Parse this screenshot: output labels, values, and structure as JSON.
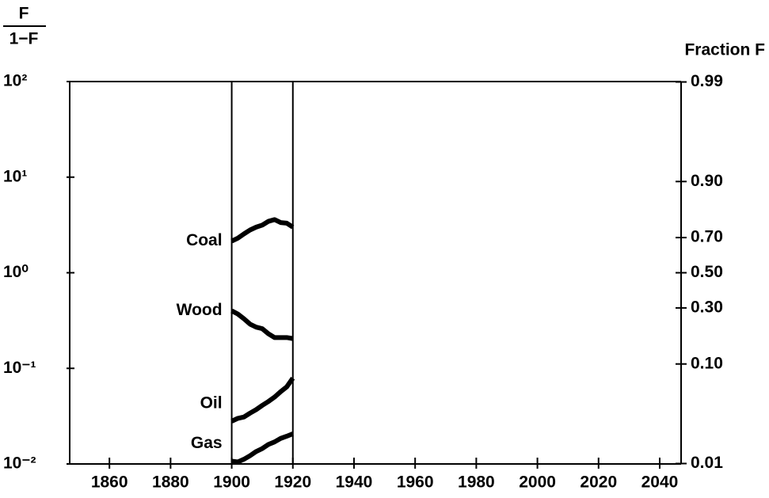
{
  "chart_data": {
    "type": "line",
    "log_y": true,
    "y_label": {
      "numerator": "F",
      "denominator": "1−F"
    },
    "y2_label": "Fraction F",
    "x": [
      1900,
      1902,
      1904,
      1906,
      1908,
      1910,
      1912,
      1914,
      1916,
      1918,
      1920
    ],
    "series": [
      {
        "name": "Coal",
        "color": "#000000",
        "values": [
          2.14,
          2.3,
          2.55,
          2.8,
          3.0,
          3.15,
          3.45,
          3.6,
          3.35,
          3.3,
          3.0
        ]
      },
      {
        "name": "Wood",
        "color": "#000000",
        "values": [
          0.4,
          0.37,
          0.33,
          0.29,
          0.27,
          0.26,
          0.23,
          0.21,
          0.21,
          0.21,
          0.205
        ]
      },
      {
        "name": "Oil",
        "color": "#000000",
        "values": [
          0.028,
          0.03,
          0.031,
          0.034,
          0.037,
          0.041,
          0.045,
          0.05,
          0.057,
          0.064,
          0.079
        ]
      },
      {
        "name": "Gas",
        "color": "#000000",
        "values": [
          0.0107,
          0.0105,
          0.0112,
          0.0122,
          0.0135,
          0.0145,
          0.016,
          0.017,
          0.0185,
          0.0195,
          0.0207
        ]
      }
    ],
    "xlim": [
      1847,
      2047
    ],
    "xticks": [
      1860,
      1880,
      1900,
      1920,
      1940,
      1960,
      1980,
      2000,
      2020,
      2040
    ],
    "ylim": [
      0.01,
      100
    ],
    "yticks": [
      {
        "value": 0.01,
        "label": "10⁻²"
      },
      {
        "value": 0.1,
        "label": "10⁻¹"
      },
      {
        "value": 1,
        "label": "10⁰"
      },
      {
        "value": 10,
        "label": "10¹"
      },
      {
        "value": 100,
        "label": "10²"
      }
    ],
    "y2_scale": "logit",
    "y2ticks": [
      {
        "value": 0.99,
        "label": "0.99"
      },
      {
        "value": 0.9,
        "label": "0.90"
      },
      {
        "value": 0.7,
        "label": "0.70"
      },
      {
        "value": 0.5,
        "label": "0.50"
      },
      {
        "value": 0.3,
        "label": "0.30"
      },
      {
        "value": 0.1,
        "label": "0.10"
      },
      {
        "value": 0.01,
        "label": "0.01"
      }
    ]
  }
}
